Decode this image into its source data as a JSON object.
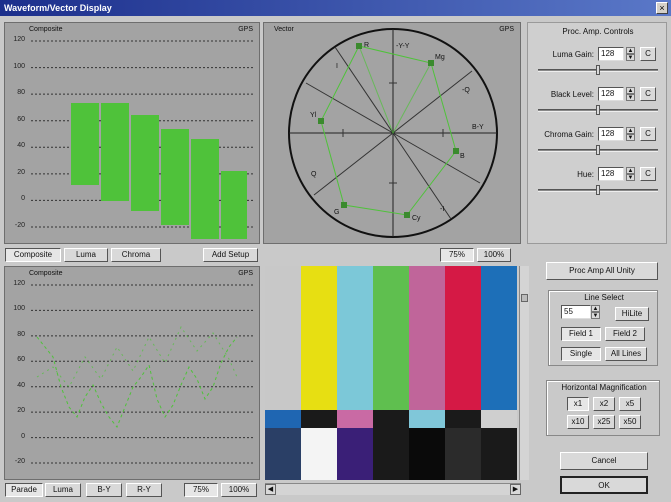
{
  "window": {
    "title": "Waveform/Vector Display",
    "close_glyph": "×"
  },
  "waveform_top": {
    "mode_label": "Composite",
    "corner_label": "GPS",
    "y_ticks": [
      "120",
      "100",
      "80",
      "60",
      "40",
      "20",
      "0",
      "-20"
    ],
    "tabs": [
      "Composite",
      "Luma",
      "Chroma"
    ],
    "add_setup_label": "Add Setup"
  },
  "vectorscope": {
    "mode_label": "Vector",
    "corner_label": "GPS",
    "targets": [
      "R",
      "Mg",
      "B",
      "Cy",
      "G",
      "Yl"
    ],
    "axis_labels": [
      "-Y-Y",
      "I",
      "-Q",
      "-I",
      "Q",
      "B-Y"
    ],
    "buttons": [
      "75%",
      "100%"
    ]
  },
  "waveform_bottom": {
    "mode_label": "Composite",
    "corner_label": "GPS",
    "y_ticks": [
      "120",
      "100",
      "80",
      "60",
      "40",
      "20",
      "0",
      "-20"
    ],
    "tabs": [
      "Parade",
      "Luma",
      "B-Y",
      "R-Y"
    ],
    "buttons": [
      "75%",
      "100%"
    ]
  },
  "proc_amp": {
    "title": "Proc. Amp. Controls",
    "controls": [
      {
        "label": "Luma Gain:",
        "value": "128",
        "reset": "C",
        "level": 0.5
      },
      {
        "label": "Black Level:",
        "value": "128",
        "reset": "C",
        "level": 0.5
      },
      {
        "label": "Chroma Gain:",
        "value": "128",
        "reset": "C",
        "level": 0.5
      },
      {
        "label": "Hue:",
        "value": "128",
        "reset": "C",
        "level": 0.5
      }
    ],
    "all_unity_label": "Proc Amp All Unity"
  },
  "line_select": {
    "title": "Line Select",
    "value": "55",
    "hiline_label": "HiLite",
    "field1_label": "Field 1",
    "field2_label": "Field 2",
    "single_label": "Single",
    "all_lines_label": "All Lines"
  },
  "magnification": {
    "title": "Horizontal Magnification",
    "options": [
      "x1",
      "x2",
      "x5",
      "x10",
      "x25",
      "x50"
    ]
  },
  "dialog": {
    "cancel_label": "Cancel",
    "ok_label": "OK"
  },
  "colorbars": {
    "top": [
      "#c8c8c8",
      "#e7df12",
      "#7cc8d8",
      "#5fbf4f",
      "#c0659a",
      "#d51945",
      "#1d6fb8"
    ],
    "middle": [
      "#1f66b2",
      "#1a1a1a",
      "#c96aa4",
      "#1a1a1a",
      "#80c7d9",
      "#1a1a1a",
      "#cfcfcf"
    ],
    "bottom": [
      "#2a3f66",
      "#f4f4f4",
      "#3a1f77",
      "#1a1a1a",
      "#0a0a0a",
      "#2b2b2b",
      "#1a1a1a"
    ]
  }
}
